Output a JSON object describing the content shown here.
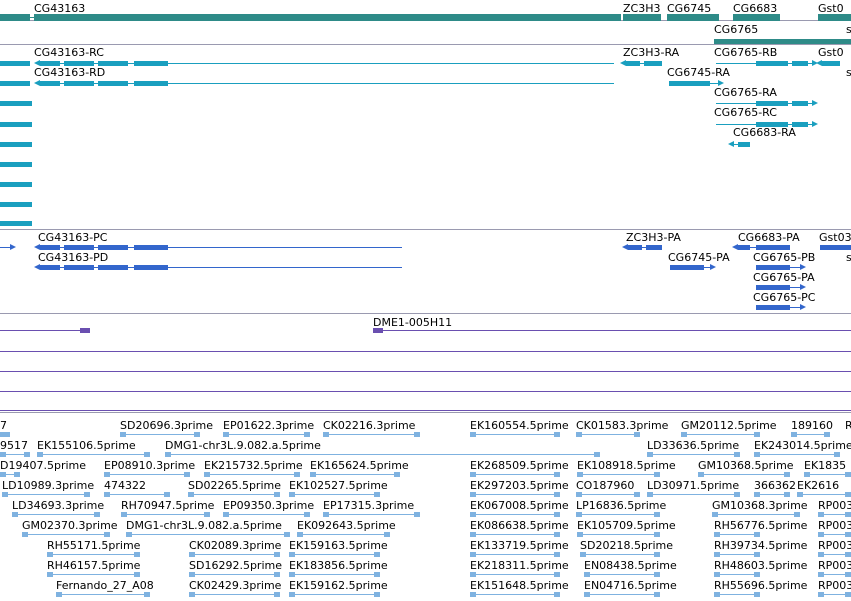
{
  "colors": {
    "gene": "#2e8b88",
    "transcript": "#1a9fbf",
    "protein": "#3366cc",
    "clone": "#6a4fb0",
    "est": "#7fb2e0",
    "separator": "#9a9ab0"
  },
  "tracks": {
    "genes": {
      "labels": [
        "CG43163",
        "ZC3H3",
        "CG6745",
        "CG6683",
        "Gst0",
        "CG6765",
        "s"
      ]
    },
    "transcripts": {
      "labels": [
        "CG43163-RC",
        "CG43163-RD",
        "ZC3H3-RA",
        "CG6765-RB",
        "Gst0",
        "s",
        "CG6745-RA",
        "CG6765-RA",
        "CG6765-RC",
        "CG6683-RA"
      ]
    },
    "proteins": {
      "labels": [
        "CG43163-PC",
        "CG43163-PD",
        "ZC3H3-PA",
        "CG6683-PA",
        "Gst03",
        "CG6745-PA",
        "CG6765-PB",
        "s",
        "CG6765-PA",
        "CG6765-PC"
      ]
    },
    "clones": {
      "labels": [
        "DME1-005H11"
      ]
    },
    "ests": {
      "labels": [
        "7",
        "SD20696.3prime",
        "EP01622.3prime",
        "CK02216.3prime",
        "EK160554.5prime",
        "CK01583.3prime",
        "GM20112.5prime",
        "189160",
        "R",
        "9517",
        "EK155106.5prime",
        "DMG1-chr3L.9.082.a.5prime",
        "LD33636.5prime",
        "EK243014.5prime",
        "D19407.5prime",
        "EP08910.3prime",
        "EK215732.5prime",
        "EK165624.5prime",
        "EK268509.5prime",
        "EK108918.5prime",
        "GM10368.5prime",
        "EK1835",
        "LD10989.3prime",
        "474322",
        "SD02265.5prime",
        "EK102527.5prime",
        "EK297203.5prime",
        "CO187960",
        "LD30971.5prime",
        "366362",
        "EK2616",
        "LD34693.3prime",
        "RH70947.5prime",
        "EP09350.3prime",
        "EP17315.3prime",
        "EK067008.5prime",
        "LP16836.5prime",
        "GM10368.3prime",
        "RP003",
        "GM02370.3prime",
        "DMG1-chr3L.9.082.a.5prime",
        "EK092643.5prime",
        "EK086638.5prime",
        "EK105709.5prime",
        "RH56776.5prime",
        "RP003",
        "RH55171.5prime",
        "CK02089.3prime",
        "EK159163.5prime",
        "EK133719.5prime",
        "SD20218.5prime",
        "RH39734.5prime",
        "RP003",
        "RH46157.5prime",
        "SD16292.5prime",
        "EK183856.5prime",
        "EK218311.5prime",
        "EN08438.5prime",
        "RH48603.5prime",
        "RP003",
        "Fernando_27_A08",
        "CK02429.3prime",
        "EK159162.5prime",
        "EK151648.5prime",
        "EN04716.5prime",
        "RH55696.5prime",
        "RP003"
      ]
    }
  }
}
